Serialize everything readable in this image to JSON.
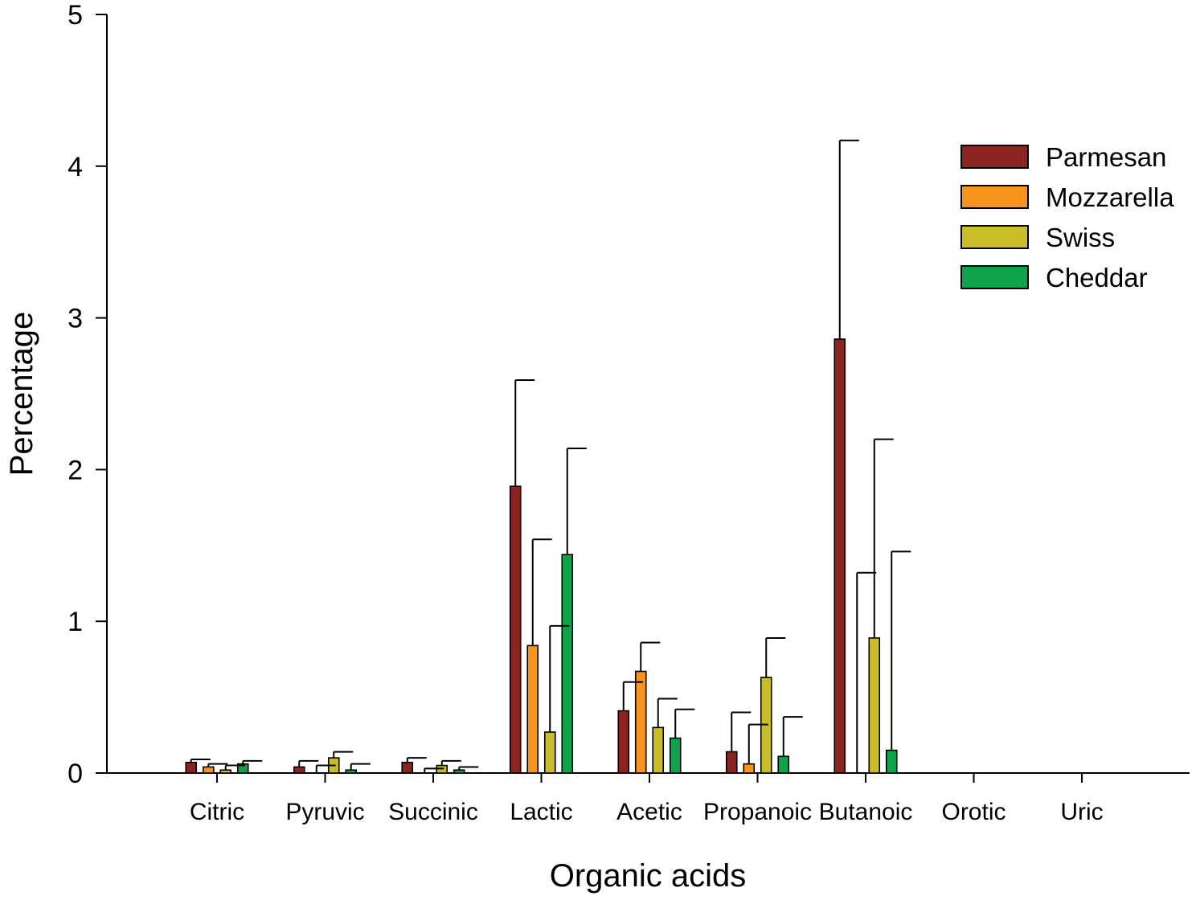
{
  "chart_data": {
    "type": "bar",
    "title": "",
    "xlabel": "Organic acids",
    "ylabel": "Percentage",
    "ylim": [
      0,
      5
    ],
    "yticks": [
      "0",
      "1",
      "2",
      "3",
      "4",
      "5"
    ],
    "categories": [
      "Citric",
      "Pyruvic",
      "Succinic",
      "Lactic",
      "Acetic",
      "Propanoic",
      "Butanoic",
      "Orotic",
      "Uric"
    ],
    "series": [
      {
        "name": "Parmesan",
        "color": "#8B2320",
        "values": [
          0.07,
          0.04,
          0.07,
          1.89,
          0.41,
          0.14,
          2.86,
          0,
          0
        ],
        "errors": [
          0.02,
          0.04,
          0.03,
          0.7,
          0.19,
          0.26,
          1.31,
          0,
          0
        ]
      },
      {
        "name": "Mozzarella",
        "color": "#F7941D",
        "values": [
          0.04,
          0.0,
          0.0,
          0.84,
          0.67,
          0.06,
          0.0,
          0,
          0
        ],
        "errors": [
          0.02,
          0.05,
          0.03,
          0.7,
          0.19,
          0.26,
          1.32,
          0,
          0
        ]
      },
      {
        "name": "Swiss",
        "color": "#C9BE2A",
        "values": [
          0.02,
          0.1,
          0.05,
          0.27,
          0.3,
          0.63,
          0.89,
          0,
          0
        ],
        "errors": [
          0.03,
          0.04,
          0.03,
          0.7,
          0.19,
          0.26,
          1.31,
          0,
          0
        ]
      },
      {
        "name": "Cheddar",
        "color": "#0FA349",
        "values": [
          0.06,
          0.02,
          0.02,
          1.44,
          0.23,
          0.11,
          0.15,
          0,
          0
        ],
        "errors": [
          0.02,
          0.04,
          0.02,
          0.7,
          0.19,
          0.26,
          1.31,
          0,
          0
        ]
      }
    ],
    "grid": false,
    "legend_position": "top-right"
  }
}
